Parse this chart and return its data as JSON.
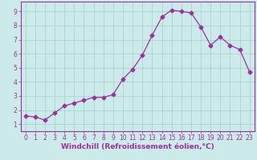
{
  "x": [
    0,
    1,
    2,
    3,
    4,
    5,
    6,
    7,
    8,
    9,
    10,
    11,
    12,
    13,
    14,
    15,
    16,
    17,
    18,
    19,
    20,
    21,
    22,
    23
  ],
  "y": [
    1.6,
    1.5,
    1.3,
    1.8,
    2.3,
    2.5,
    2.7,
    2.9,
    2.9,
    3.1,
    4.2,
    4.9,
    5.9,
    7.3,
    8.6,
    9.1,
    9.0,
    8.9,
    7.9,
    6.6,
    7.2,
    6.6,
    6.3,
    4.7
  ],
  "line_color": "#993399",
  "marker": "D",
  "marker_size": 2.5,
  "bg_color": "#cceaea",
  "grid_color": "#aad4d4",
  "xlabel": "Windchill (Refroidissement éolien,°C)",
  "xlim": [
    -0.5,
    23.5
  ],
  "ylim": [
    0.5,
    9.7
  ],
  "yticks": [
    1,
    2,
    3,
    4,
    5,
    6,
    7,
    8,
    9
  ],
  "xticks": [
    0,
    1,
    2,
    3,
    4,
    5,
    6,
    7,
    8,
    9,
    10,
    11,
    12,
    13,
    14,
    15,
    16,
    17,
    18,
    19,
    20,
    21,
    22,
    23
  ],
  "xlabel_color": "#993399",
  "tick_color": "#993399",
  "axis_color": "#993399",
  "xlabel_fontsize": 6.5,
  "tick_fontsize": 5.5
}
